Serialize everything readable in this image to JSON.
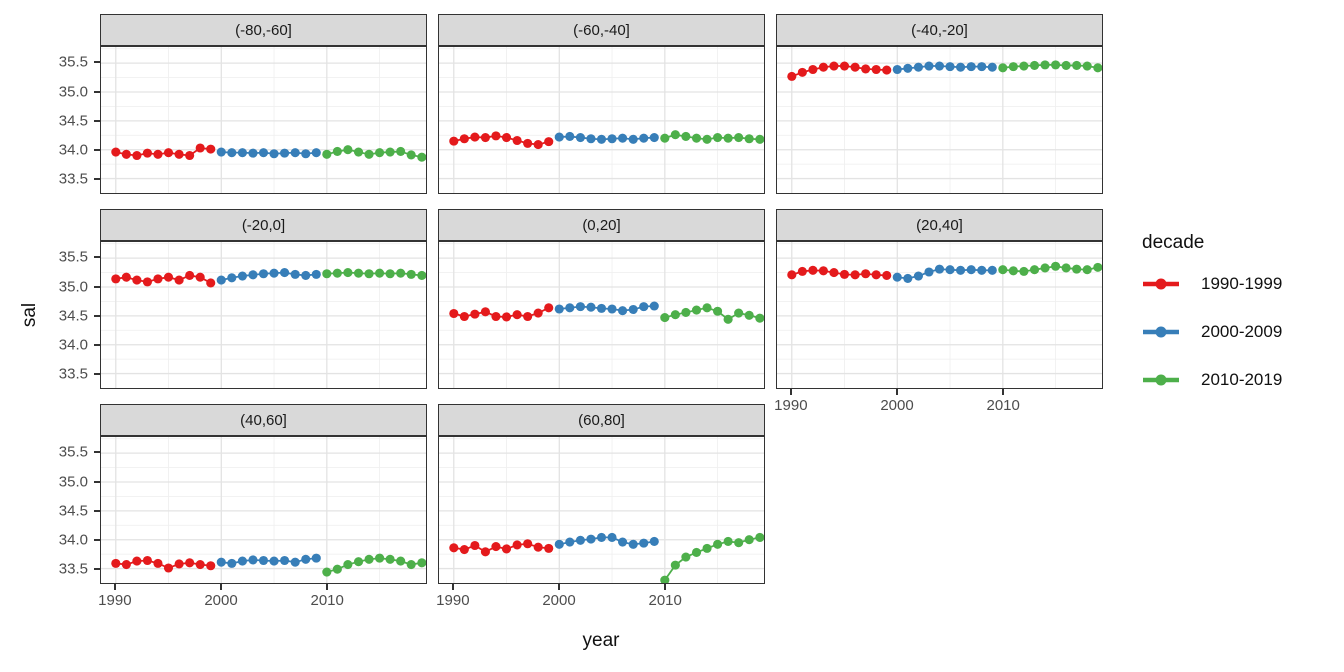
{
  "chart_data": {
    "type": "scatter",
    "title": "",
    "xlabel": "year",
    "ylabel": "sal",
    "x_ticks": [
      1990,
      2000,
      2010
    ],
    "y_ticks": [
      33.5,
      34.0,
      34.5,
      35.0,
      35.5
    ],
    "y_minor_ticks": [
      33.75,
      34.25,
      34.75,
      35.25,
      35.75
    ],
    "x_minor_ticks": [
      1995,
      2005,
      2015
    ],
    "xlim": [
      1988.6,
      2019.4
    ],
    "ylim": [
      33.25,
      35.78
    ],
    "grid": "major-and-minor",
    "legend_position": "right",
    "legend": {
      "title": "decade",
      "entries": [
        {
          "label": "1990-1999",
          "color": "#E41A1C",
          "start_year": 1990
        },
        {
          "label": "2000-2009",
          "color": "#377EB8",
          "start_year": 2000
        },
        {
          "label": "2010-2019",
          "color": "#4DAF4A",
          "start_year": 2010
        }
      ]
    },
    "facets": [
      {
        "label": "(-80,-60]",
        "series": [
          {
            "decade": "1990-1999",
            "values": [
              33.96,
              33.92,
              33.9,
              33.94,
              33.92,
              33.95,
              33.92,
              33.9,
              34.03,
              34.01
            ]
          },
          {
            "decade": "2000-2009",
            "values": [
              33.96,
              33.95,
              33.95,
              33.94,
              33.95,
              33.93,
              33.94,
              33.95,
              33.93,
              33.95
            ]
          },
          {
            "decade": "2010-2019",
            "values": [
              33.92,
              33.97,
              34.0,
              33.96,
              33.92,
              33.95,
              33.96,
              33.97,
              33.91,
              33.87
            ]
          }
        ]
      },
      {
        "label": "(-60,-40]",
        "series": [
          {
            "decade": "1990-1999",
            "values": [
              34.15,
              34.19,
              34.22,
              34.21,
              34.24,
              34.21,
              34.16,
              34.11,
              34.09,
              34.14
            ]
          },
          {
            "decade": "2000-2009",
            "values": [
              34.22,
              34.23,
              34.21,
              34.19,
              34.18,
              34.19,
              34.2,
              34.18,
              34.2,
              34.21
            ]
          },
          {
            "decade": "2010-2019",
            "values": [
              34.2,
              34.26,
              34.23,
              34.2,
              34.18,
              34.21,
              34.2,
              34.21,
              34.19,
              34.18
            ]
          }
        ]
      },
      {
        "label": "(-40,-20]",
        "series": [
          {
            "decade": "1990-1999",
            "values": [
              35.27,
              35.34,
              35.39,
              35.43,
              35.45,
              35.45,
              35.43,
              35.4,
              35.39,
              35.38
            ]
          },
          {
            "decade": "2000-2009",
            "values": [
              35.39,
              35.41,
              35.43,
              35.45,
              35.45,
              35.44,
              35.43,
              35.44,
              35.44,
              35.43
            ]
          },
          {
            "decade": "2010-2019",
            "values": [
              35.42,
              35.44,
              35.45,
              35.46,
              35.47,
              35.47,
              35.46,
              35.46,
              35.45,
              35.42
            ]
          }
        ]
      },
      {
        "label": "(-20,0]",
        "series": [
          {
            "decade": "1990-1999",
            "values": [
              35.14,
              35.17,
              35.12,
              35.09,
              35.14,
              35.17,
              35.12,
              35.2,
              35.17,
              35.07
            ]
          },
          {
            "decade": "2000-2009",
            "values": [
              35.12,
              35.16,
              35.19,
              35.21,
              35.23,
              35.24,
              35.25,
              35.22,
              35.2,
              35.22
            ]
          },
          {
            "decade": "2010-2019",
            "values": [
              35.23,
              35.24,
              35.25,
              35.24,
              35.23,
              35.24,
              35.23,
              35.24,
              35.22,
              35.2
            ]
          }
        ]
      },
      {
        "label": "(0,20]",
        "series": [
          {
            "decade": "1990-1999",
            "values": [
              34.54,
              34.49,
              34.53,
              34.57,
              34.49,
              34.48,
              34.52,
              34.49,
              34.55,
              34.64
            ]
          },
          {
            "decade": "2000-2009",
            "values": [
              34.62,
              34.64,
              34.66,
              34.65,
              34.63,
              34.62,
              34.59,
              34.61,
              34.66,
              34.67
            ]
          },
          {
            "decade": "2010-2019",
            "values": [
              34.47,
              34.52,
              34.56,
              34.6,
              34.64,
              34.58,
              34.44,
              34.55,
              34.51,
              34.46
            ]
          }
        ]
      },
      {
        "label": "(20,40]",
        "series": [
          {
            "decade": "1990-1999",
            "values": [
              35.21,
              35.27,
              35.29,
              35.28,
              35.25,
              35.22,
              35.21,
              35.23,
              35.21,
              35.2
            ]
          },
          {
            "decade": "2000-2009",
            "values": [
              35.17,
              35.15,
              35.19,
              35.26,
              35.31,
              35.3,
              35.29,
              35.3,
              35.29,
              35.29
            ]
          },
          {
            "decade": "2010-2019",
            "values": [
              35.3,
              35.28,
              35.27,
              35.3,
              35.33,
              35.36,
              35.33,
              35.31,
              35.3,
              35.34
            ]
          }
        ]
      },
      {
        "label": "(40,60]",
        "series": [
          {
            "decade": "1990-1999",
            "values": [
              33.59,
              33.57,
              33.63,
              33.64,
              33.59,
              33.51,
              33.58,
              33.6,
              33.57,
              33.55
            ]
          },
          {
            "decade": "2000-2009",
            "values": [
              33.61,
              33.59,
              33.63,
              33.65,
              33.64,
              33.63,
              33.64,
              33.61,
              33.66,
              33.68
            ]
          },
          {
            "decade": "2010-2019",
            "values": [
              33.44,
              33.49,
              33.57,
              33.62,
              33.66,
              33.68,
              33.66,
              33.63,
              33.57,
              33.6
            ]
          }
        ]
      },
      {
        "label": "(60,80]",
        "series": [
          {
            "decade": "1990-1999",
            "values": [
              33.86,
              33.83,
              33.9,
              33.79,
              33.88,
              33.84,
              33.91,
              33.93,
              33.87,
              33.85
            ]
          },
          {
            "decade": "2000-2009",
            "values": [
              33.92,
              33.96,
              33.99,
              34.01,
              34.04,
              34.04,
              33.96,
              33.92,
              33.94,
              33.97
            ]
          },
          {
            "decade": "2010-2019",
            "values": [
              33.3,
              33.56,
              33.7,
              33.78,
              33.85,
              33.92,
              33.97,
              33.95,
              34.0,
              34.04
            ]
          }
        ]
      }
    ],
    "style": {
      "strip_background": "#D9D9D9",
      "panel_border": "#333333",
      "grid_major": "#E3E3E3",
      "grid_minor": "#F0F0F0",
      "tick_label_color": "#4D4D4D"
    }
  }
}
